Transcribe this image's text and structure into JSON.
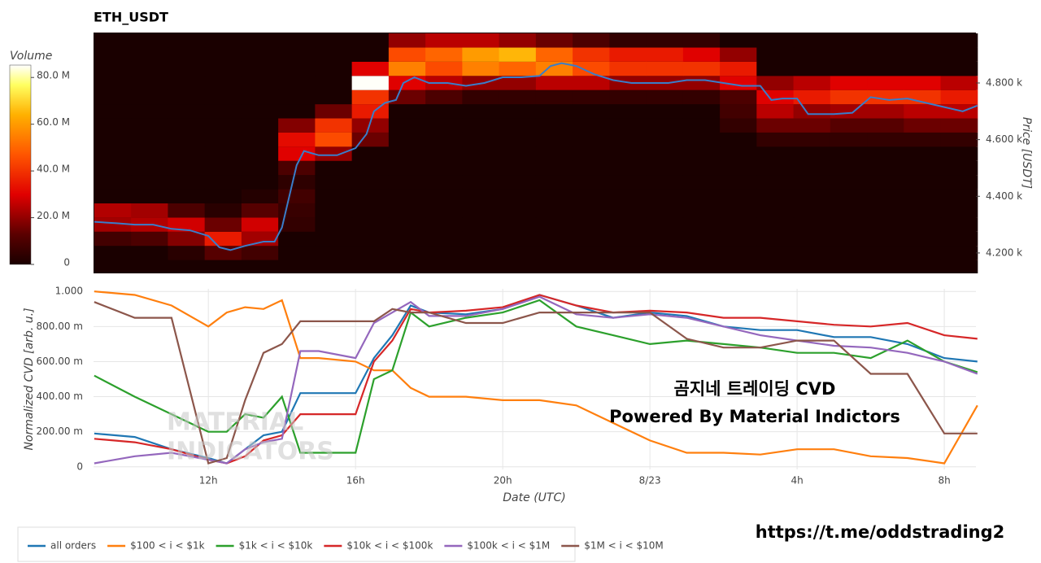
{
  "chart_data": [
    {
      "type": "heatmap",
      "title": "ETH_USDT",
      "x_bins": [
        8.9,
        9.9,
        10.9,
        11.9,
        12.9,
        13.9,
        14.9,
        15.9,
        16.9,
        17.9,
        18.9,
        19.9,
        20.9,
        21.9,
        22.9,
        23.9,
        24.9,
        25.9,
        26.9,
        27.9,
        28.9,
        29.9,
        30.9,
        31.9,
        32.9
      ],
      "y_bins": [
        4125,
        4175,
        4225,
        4275,
        4325,
        4375,
        4425,
        4475,
        4525,
        4575,
        4625,
        4675,
        4725,
        4775,
        4825,
        4875,
        4925,
        4975
      ],
      "z": [
        [
          0,
          0,
          8,
          22,
          24,
          0,
          0,
          0,
          0,
          0,
          0,
          0,
          0,
          0,
          0,
          0,
          0
        ],
        [
          0,
          0,
          10,
          24,
          22,
          0,
          0,
          0,
          0,
          0,
          0,
          0,
          0,
          0,
          0,
          0,
          0
        ],
        [
          0,
          3,
          18,
          28,
          10,
          0,
          0,
          0,
          0,
          0,
          0,
          0,
          0,
          0,
          0,
          0,
          0
        ],
        [
          0,
          12,
          35,
          15,
          3,
          0,
          0,
          0,
          0,
          0,
          0,
          0,
          0,
          0,
          0,
          0,
          0
        ],
        [
          0,
          8,
          22,
          28,
          12,
          2,
          0,
          0,
          0,
          0,
          0,
          0,
          0,
          0,
          0,
          0,
          0
        ],
        [
          0,
          0,
          0,
          5,
          6,
          8,
          4,
          10,
          30,
          32,
          18,
          0,
          0,
          0,
          0,
          0,
          0
        ],
        [
          0,
          0,
          0,
          0,
          0,
          0,
          0,
          0,
          20,
          45,
          40,
          15,
          0,
          0,
          0,
          0,
          0
        ],
        [
          0,
          0,
          0,
          0,
          0,
          0,
          0,
          0,
          0,
          15,
          20,
          35,
          40,
          85,
          30,
          0,
          0
        ],
        [
          0,
          0,
          0,
          0,
          0,
          0,
          0,
          0,
          0,
          0,
          0,
          0,
          15,
          30,
          55,
          45,
          20
        ],
        [
          0,
          0,
          0,
          0,
          0,
          0,
          0,
          0,
          0,
          0,
          0,
          0,
          10,
          25,
          45,
          50,
          25
        ],
        [
          0,
          0,
          0,
          0,
          0,
          0,
          0,
          0,
          0,
          0,
          0,
          0,
          5,
          20,
          55,
          60,
          25
        ],
        [
          0,
          0,
          0,
          0,
          0,
          0,
          0,
          0,
          0,
          0,
          0,
          0,
          5,
          20,
          50,
          65,
          20
        ],
        [
          0,
          0,
          0,
          0,
          0,
          0,
          0,
          0,
          0,
          0,
          0,
          0,
          5,
          25,
          55,
          50,
          15
        ],
        [
          0,
          0,
          0,
          0,
          0,
          0,
          0,
          0,
          0,
          0,
          0,
          0,
          5,
          25,
          45,
          40,
          10
        ],
        [
          0,
          0,
          0,
          0,
          0,
          0,
          0,
          0,
          0,
          0,
          0,
          0,
          5,
          20,
          40,
          35,
          5
        ],
        [
          0,
          0,
          0,
          0,
          0,
          0,
          0,
          0,
          0,
          0,
          0,
          0,
          5,
          20,
          40,
          35,
          5
        ],
        [
          0,
          0,
          0,
          0,
          0,
          0,
          0,
          0,
          0,
          0,
          0,
          0,
          5,
          20,
          40,
          30,
          5
        ],
        [
          0,
          0,
          0,
          0,
          0,
          0,
          0,
          0,
          0,
          0,
          5,
          8,
          10,
          30,
          35,
          20,
          0
        ],
        [
          0,
          0,
          0,
          0,
          0,
          0,
          0,
          0,
          0,
          5,
          15,
          25,
          30,
          20,
          0,
          0,
          0
        ],
        [
          0,
          0,
          0,
          0,
          0,
          0,
          0,
          0,
          0,
          5,
          15,
          20,
          35,
          25,
          0,
          0,
          0
        ],
        [
          0,
          0,
          0,
          0,
          0,
          0,
          0,
          0,
          0,
          5,
          12,
          22,
          40,
          30,
          0,
          0,
          0
        ],
        [
          0,
          0,
          0,
          0,
          0,
          0,
          0,
          0,
          0,
          5,
          12,
          22,
          40,
          30,
          0,
          0,
          0
        ],
        [
          0,
          0,
          0,
          0,
          0,
          0,
          0,
          0,
          0,
          5,
          15,
          25,
          40,
          30,
          0,
          0,
          0
        ],
        [
          0,
          0,
          0,
          0,
          0,
          0,
          0,
          0,
          0,
          5,
          15,
          25,
          35,
          25,
          0,
          0,
          0
        ]
      ],
      "colorbar": {
        "title": "Volume",
        "lim": [
          0,
          85.3
        ],
        "ticks": [
          0,
          {
            "value": 20,
            "label": "20.0 M"
          },
          {
            "value": 40,
            "label": "40.0 M"
          },
          {
            "value": 60,
            "label": "60.0 M"
          },
          {
            "value": 80,
            "label": "80.0 M"
          }
        ]
      },
      "price": {
        "color": "#3a7dc9",
        "x": [
          8.9,
          9.5,
          10,
          10.5,
          11,
          11.5,
          12,
          12.3,
          12.6,
          13,
          13.5,
          13.8,
          14,
          14.2,
          14.4,
          14.6,
          15,
          15.5,
          16,
          16.3,
          16.5,
          16.8,
          17.1,
          17.3,
          17.6,
          18,
          18.5,
          19,
          19.5,
          20,
          20.5,
          21,
          21.3,
          21.6,
          22,
          22.5,
          23,
          23.5,
          24,
          24.5,
          25,
          25.5,
          26,
          26.5,
          27,
          27.3,
          27.6,
          28,
          28.3,
          28.6,
          29,
          29.5,
          30,
          30.5,
          31,
          31.5,
          32,
          32.5,
          32.9
        ],
        "values": [
          4310,
          4305,
          4300,
          4300,
          4285,
          4280,
          4260,
          4220,
          4210,
          4225,
          4240,
          4240,
          4290,
          4400,
          4510,
          4560,
          4545,
          4545,
          4570,
          4620,
          4700,
          4730,
          4740,
          4800,
          4820,
          4800,
          4800,
          4790,
          4800,
          4820,
          4820,
          4825,
          4860,
          4870,
          4860,
          4830,
          4810,
          4800,
          4800,
          4800,
          4810,
          4810,
          4800,
          4790,
          4790,
          4740,
          4745,
          4745,
          4690,
          4690,
          4690,
          4695,
          4750,
          4740,
          4745,
          4730,
          4715,
          4700,
          4720
        ]
      },
      "xlim": [
        8.88,
        32.86
      ],
      "y_axis_side": "right",
      "y_label": "Price [USDT]",
      "ylim": [
        4128,
        4978
      ],
      "yticks": [
        {
          "value": 4200,
          "label": "4.200 k"
        },
        {
          "value": 4400,
          "label": "4.400 k"
        },
        {
          "value": 4600,
          "label": "4.600 k"
        },
        {
          "value": 4800,
          "label": "4.800 k"
        }
      ]
    },
    {
      "type": "line",
      "x_label": "Date (UTC)",
      "y_label": "Normalized CVD [arb. u.]",
      "grid": true,
      "x": [
        8.9,
        10,
        11,
        12,
        12.5,
        13,
        13.5,
        14,
        14.5,
        15,
        16,
        16.5,
        17,
        17.5,
        18,
        19,
        20,
        21,
        22,
        23,
        24,
        25,
        26,
        27,
        28,
        29,
        30,
        31,
        32,
        32.9
      ],
      "xlim": [
        8.88,
        32.86
      ],
      "xticks": [
        {
          "value": 12,
          "label": "12h"
        },
        {
          "value": 16,
          "label": "16h"
        },
        {
          "value": 20,
          "label": "20h"
        },
        {
          "value": 24,
          "label": "8/23"
        },
        {
          "value": 28,
          "label": "4h"
        },
        {
          "value": 32,
          "label": "8h"
        }
      ],
      "ylim": [
        -0.015,
        1.015
      ],
      "yticks": [
        0,
        {
          "value": 0.2,
          "label": "200.00 m"
        },
        {
          "value": 0.4,
          "label": "400.00 m"
        },
        {
          "value": 0.6,
          "label": "600.00 m"
        },
        {
          "value": 0.8,
          "label": "800.00 m"
        },
        {
          "value": 1,
          "label": "1.000"
        }
      ],
      "series": [
        {
          "name": "all orders",
          "color": "#1f77b4",
          "values": [
            0.19,
            0.17,
            0.1,
            0.05,
            0.02,
            0.1,
            0.18,
            0.2,
            0.42,
            0.42,
            0.42,
            0.62,
            0.75,
            0.92,
            0.88,
            0.87,
            0.9,
            0.98,
            0.92,
            0.85,
            0.88,
            0.86,
            0.8,
            0.78,
            0.78,
            0.74,
            0.74,
            0.7,
            0.62,
            0.6
          ]
        },
        {
          "name": "$100 < i < $1k",
          "color": "#ff7f0e",
          "values": [
            1.0,
            0.98,
            0.92,
            0.8,
            0.88,
            0.91,
            0.9,
            0.95,
            0.62,
            0.62,
            0.6,
            0.55,
            0.55,
            0.45,
            0.4,
            0.4,
            0.38,
            0.38,
            0.35,
            0.25,
            0.15,
            0.08,
            0.08,
            0.07,
            0.1,
            0.1,
            0.06,
            0.05,
            0.02,
            0.35
          ]
        },
        {
          "name": "$1k < i < $10k",
          "color": "#2ca02c",
          "values": [
            0.52,
            0.4,
            0.3,
            0.2,
            0.2,
            0.3,
            0.28,
            0.4,
            0.08,
            0.08,
            0.08,
            0.5,
            0.55,
            0.88,
            0.8,
            0.85,
            0.88,
            0.95,
            0.8,
            0.75,
            0.7,
            0.72,
            0.7,
            0.68,
            0.65,
            0.65,
            0.62,
            0.72,
            0.6,
            0.54
          ]
        },
        {
          "name": "$10k < i < $100k",
          "color": "#d62728",
          "values": [
            0.16,
            0.14,
            0.1,
            0.04,
            0.02,
            0.06,
            0.15,
            0.18,
            0.3,
            0.3,
            0.3,
            0.6,
            0.72,
            0.9,
            0.88,
            0.89,
            0.91,
            0.98,
            0.92,
            0.88,
            0.89,
            0.88,
            0.85,
            0.85,
            0.83,
            0.81,
            0.8,
            0.82,
            0.75,
            0.73
          ]
        },
        {
          "name": "$100k < i < $1M",
          "color": "#9467bd",
          "values": [
            0.02,
            0.06,
            0.08,
            0.04,
            0.02,
            0.1,
            0.14,
            0.16,
            0.66,
            0.66,
            0.62,
            0.82,
            0.88,
            0.94,
            0.86,
            0.86,
            0.9,
            0.97,
            0.87,
            0.85,
            0.87,
            0.85,
            0.8,
            0.75,
            0.72,
            0.69,
            0.68,
            0.65,
            0.6,
            0.53
          ]
        },
        {
          "name": "$1M < i < $10M",
          "color": "#8c564b",
          "values": [
            0.94,
            0.85,
            0.85,
            0.02,
            0.05,
            0.38,
            0.65,
            0.7,
            0.83,
            0.83,
            0.83,
            0.83,
            0.9,
            0.88,
            0.88,
            0.82,
            0.82,
            0.88,
            0.88,
            0.88,
            0.88,
            0.73,
            0.68,
            0.68,
            0.72,
            0.72,
            0.53,
            0.53,
            0.19,
            0.19
          ]
        }
      ],
      "watermark": [
        "MATERIAL",
        "INDICATORS"
      ],
      "annotations": [
        "곰지네 트레이딩 CVD",
        "Powered By Material Indictors"
      ]
    }
  ],
  "footer_link": "https://t.me/oddstrading2"
}
